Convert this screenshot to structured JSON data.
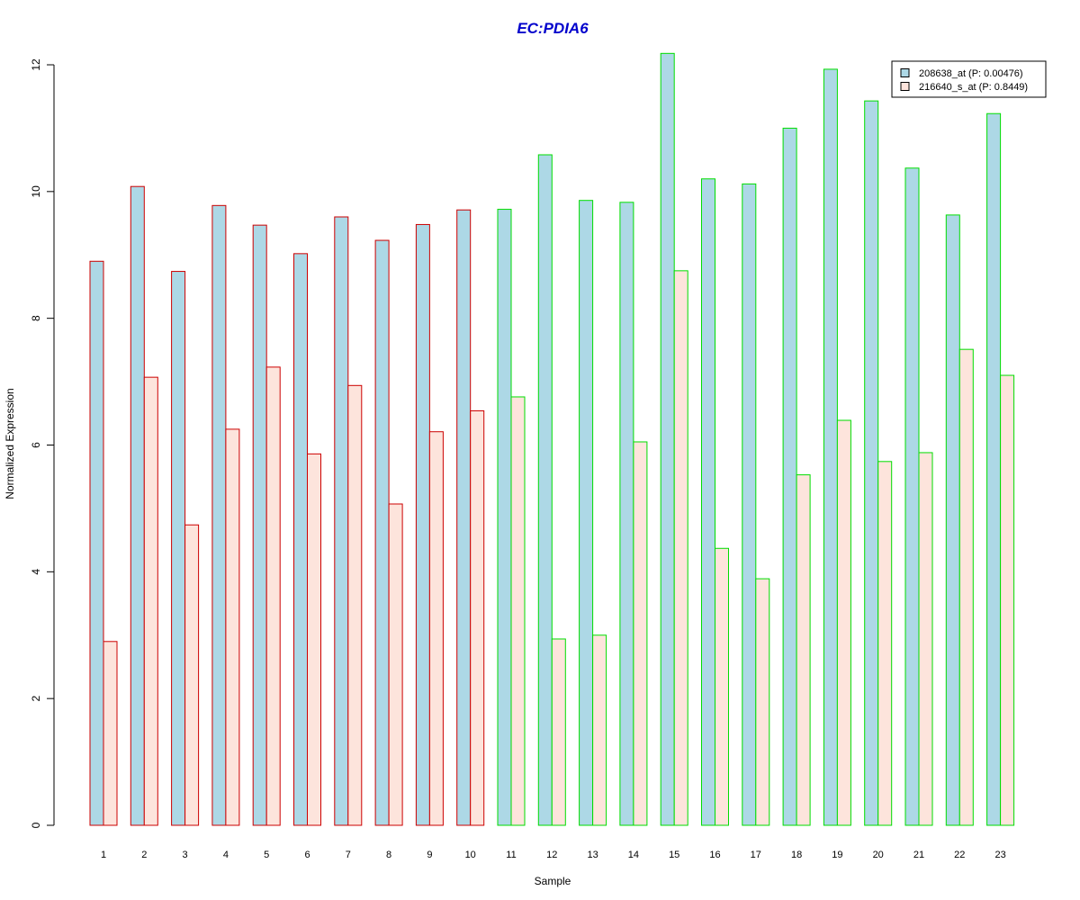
{
  "chart_data": {
    "type": "bar",
    "title": "EC:PDIA6",
    "xlabel": "Sample",
    "ylabel": "Normalized Expression",
    "ylim": [
      0,
      12
    ],
    "yticks": [
      0,
      2,
      4,
      6,
      8,
      10,
      12
    ],
    "categories": [
      "1",
      "2",
      "3",
      "4",
      "5",
      "6",
      "7",
      "8",
      "9",
      "10",
      "11",
      "12",
      "13",
      "14",
      "15",
      "16",
      "17",
      "18",
      "19",
      "20",
      "21",
      "22",
      "23"
    ],
    "series": [
      {
        "name": "208638_at (P: 0.00476)",
        "fill": "#add8e6",
        "values": [
          8.9,
          10.08,
          8.74,
          9.78,
          9.47,
          9.02,
          9.6,
          9.23,
          9.48,
          9.71,
          9.72,
          10.58,
          9.86,
          9.83,
          12.18,
          10.2,
          10.12,
          11.0,
          11.93,
          11.43,
          10.37,
          9.63,
          11.23
        ]
      },
      {
        "name": "216640_s_at (P: 0.8449)",
        "fill": "#fde4dc",
        "values": [
          2.9,
          7.07,
          4.74,
          6.25,
          7.23,
          5.86,
          6.94,
          5.07,
          6.21,
          6.54,
          6.76,
          2.94,
          3.0,
          6.05,
          8.75,
          4.37,
          3.89,
          5.53,
          6.39,
          5.74,
          5.88,
          7.51,
          7.1
        ]
      }
    ],
    "groups": [
      {
        "samples": [
          1,
          2,
          3,
          4,
          5,
          6,
          7,
          8,
          9,
          10
        ],
        "border_color": "#cc0000"
      },
      {
        "samples": [
          11,
          12,
          13,
          14,
          15,
          16,
          17,
          18,
          19,
          20,
          21,
          22,
          23
        ],
        "border_color": "#00dd00"
      }
    ],
    "title_color": "#0000cc",
    "legend_position": "top-right",
    "grid": false
  }
}
